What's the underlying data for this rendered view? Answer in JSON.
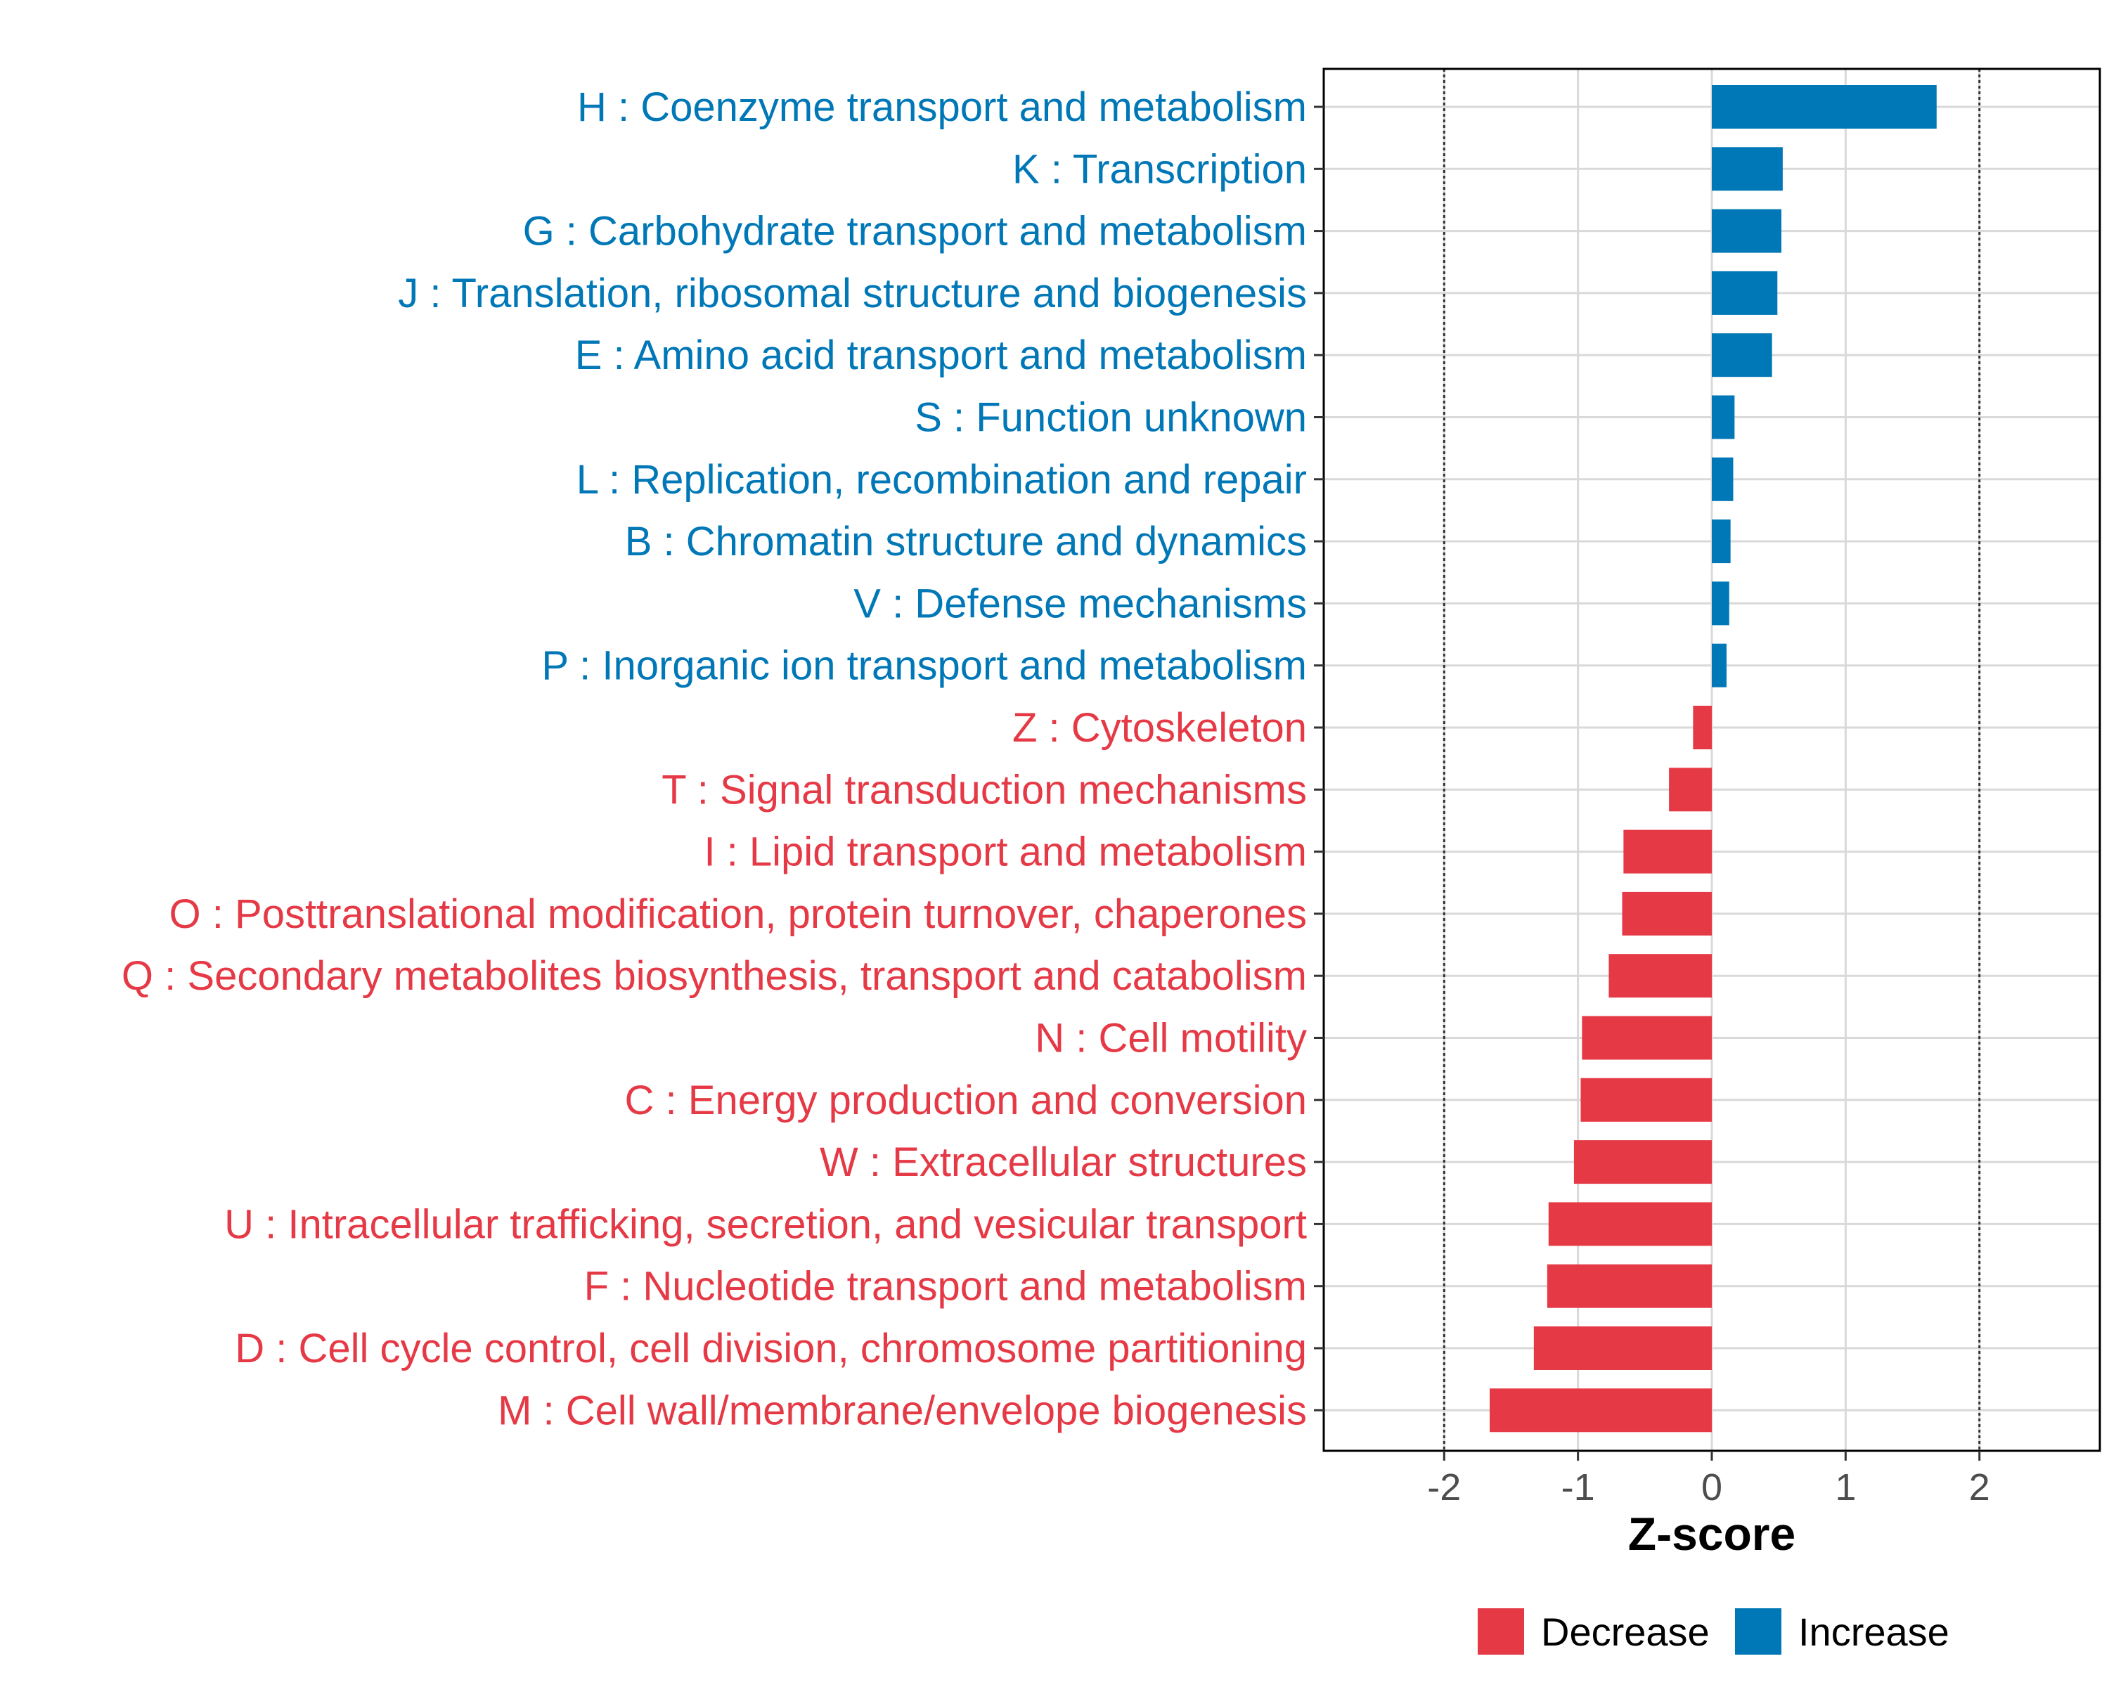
{
  "chart_data": {
    "type": "bar",
    "orientation": "horizontal",
    "title": "",
    "xlabel": "Z-score",
    "ylabel": "",
    "xlim": [
      -2.9,
      2.9
    ],
    "x_ticks": [
      "-2",
      "-1",
      "0",
      "1",
      "2"
    ],
    "reference_lines": [
      -2,
      2
    ],
    "grid": true,
    "colors": {
      "Decrease": "#e63946",
      "Increase": "#0077b6"
    },
    "legend": {
      "placement": "bottom",
      "entries": [
        {
          "name": "Decrease",
          "color": "#e63946"
        },
        {
          "name": "Increase",
          "color": "#0077b6"
        }
      ]
    },
    "categories": [
      {
        "label": "H : Coenzyme transport and metabolism",
        "value": 1.68,
        "group": "Increase"
      },
      {
        "label": "K : Transcription",
        "value": 0.53,
        "group": "Increase"
      },
      {
        "label": "G : Carbohydrate transport and metabolism",
        "value": 0.52,
        "group": "Increase"
      },
      {
        "label": "J : Translation, ribosomal structure and biogenesis",
        "value": 0.49,
        "group": "Increase"
      },
      {
        "label": "E : Amino acid transport and metabolism",
        "value": 0.45,
        "group": "Increase"
      },
      {
        "label": "S : Function unknown",
        "value": 0.17,
        "group": "Increase"
      },
      {
        "label": "L : Replication, recombination and repair",
        "value": 0.16,
        "group": "Increase"
      },
      {
        "label": "B : Chromatin structure and dynamics",
        "value": 0.14,
        "group": "Increase"
      },
      {
        "label": "V : Defense mechanisms",
        "value": 0.13,
        "group": "Increase"
      },
      {
        "label": "P : Inorganic ion transport and metabolism",
        "value": 0.11,
        "group": "Increase"
      },
      {
        "label": "Z : Cytoskeleton",
        "value": -0.14,
        "group": "Decrease"
      },
      {
        "label": "T : Signal transduction mechanisms",
        "value": -0.32,
        "group": "Decrease"
      },
      {
        "label": "I : Lipid transport and metabolism",
        "value": -0.66,
        "group": "Decrease"
      },
      {
        "label": "O : Posttranslational modification, protein turnover, chaperones",
        "value": -0.67,
        "group": "Decrease"
      },
      {
        "label": "Q : Secondary metabolites biosynthesis, transport and catabolism",
        "value": -0.77,
        "group": "Decrease"
      },
      {
        "label": "N : Cell motility",
        "value": -0.97,
        "group": "Decrease"
      },
      {
        "label": "C : Energy production and conversion",
        "value": -0.98,
        "group": "Decrease"
      },
      {
        "label": "W : Extracellular structures",
        "value": -1.03,
        "group": "Decrease"
      },
      {
        "label": "U : Intracellular trafficking, secretion, and vesicular transport",
        "value": -1.22,
        "group": "Decrease"
      },
      {
        "label": "F : Nucleotide transport and metabolism",
        "value": -1.23,
        "group": "Decrease"
      },
      {
        "label": "D : Cell cycle control, cell division, chromosome partitioning",
        "value": -1.33,
        "group": "Decrease"
      },
      {
        "label": "M : Cell wall/membrane/envelope biogenesis",
        "value": -1.66,
        "group": "Decrease"
      }
    ]
  }
}
